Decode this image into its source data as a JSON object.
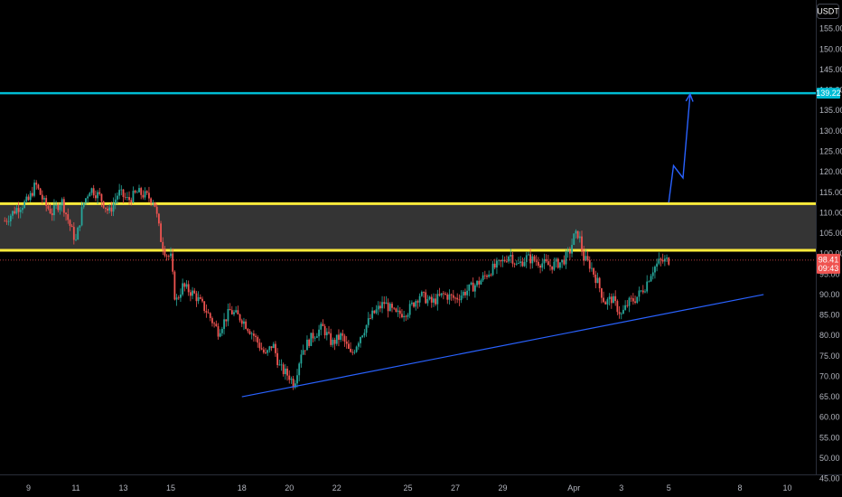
{
  "chart_data": {
    "type": "candlestick",
    "currency": "USDT",
    "x_axis": {
      "tick_labels": [
        "9",
        "11",
        "13",
        "15",
        "18",
        "20",
        "22",
        "25",
        "27",
        "29",
        "Apr",
        "3",
        "5",
        "8",
        "10"
      ],
      "tick_days": [
        9,
        11,
        13,
        15,
        18,
        20,
        22,
        25,
        27,
        29,
        32,
        34,
        36,
        39,
        41
      ],
      "range_days": [
        7.8,
        42.2
      ]
    },
    "y_axis": {
      "tick_labels": [
        "155.00",
        "150.00",
        "145.00",
        "140.00",
        "135.00",
        "130.00",
        "125.00",
        "120.00",
        "115.00",
        "110.00",
        "105.00",
        "100.00",
        "95.00",
        "90.00",
        "85.00",
        "80.00",
        "75.00",
        "70.00",
        "65.00",
        "60.00",
        "55.00",
        "50.00",
        "45.00"
      ],
      "ylim": [
        40.5,
        162
      ]
    },
    "price_path": [
      [
        8.0,
        108
      ],
      [
        8.5,
        111
      ],
      [
        9.0,
        113
      ],
      [
        9.3,
        117
      ],
      [
        9.7,
        112
      ],
      [
        10.0,
        110
      ],
      [
        10.4,
        113
      ],
      [
        10.8,
        106
      ],
      [
        11.0,
        103
      ],
      [
        11.3,
        112
      ],
      [
        11.6,
        116
      ],
      [
        12.0,
        114
      ],
      [
        12.4,
        110
      ],
      [
        12.8,
        115
      ],
      [
        13.2,
        113
      ],
      [
        13.6,
        115
      ],
      [
        14.0,
        114
      ],
      [
        14.3,
        113
      ],
      [
        14.6,
        103
      ],
      [
        14.8,
        100
      ],
      [
        15.0,
        99
      ],
      [
        15.2,
        88
      ],
      [
        15.5,
        92
      ],
      [
        16.0,
        90
      ],
      [
        16.5,
        86
      ],
      [
        17.0,
        81
      ],
      [
        17.5,
        86
      ],
      [
        18.0,
        84
      ],
      [
        18.5,
        80
      ],
      [
        19.0,
        75
      ],
      [
        19.3,
        78
      ],
      [
        19.6,
        72
      ],
      [
        20.0,
        70
      ],
      [
        20.2,
        68
      ],
      [
        20.5,
        76
      ],
      [
        21.0,
        80
      ],
      [
        21.4,
        82
      ],
      [
        21.8,
        78
      ],
      [
        22.2,
        80
      ],
      [
        22.6,
        75
      ],
      [
        23.0,
        80
      ],
      [
        23.5,
        85
      ],
      [
        24.0,
        88
      ],
      [
        24.5,
        85
      ],
      [
        25.0,
        86
      ],
      [
        25.5,
        90
      ],
      [
        26.0,
        88
      ],
      [
        26.5,
        90
      ],
      [
        27.0,
        89
      ],
      [
        27.5,
        91
      ],
      [
        28.0,
        93
      ],
      [
        28.5,
        96
      ],
      [
        29.0,
        98
      ],
      [
        29.3,
        100
      ],
      [
        29.6,
        97
      ],
      [
        30.0,
        99
      ],
      [
        30.5,
        98
      ],
      [
        31.0,
        97
      ],
      [
        31.5,
        98
      ],
      [
        31.8,
        100
      ],
      [
        32.0,
        104
      ],
      [
        32.2,
        105
      ],
      [
        32.4,
        99
      ],
      [
        32.7,
        97
      ],
      [
        33.0,
        93
      ],
      [
        33.3,
        88
      ],
      [
        33.6,
        89
      ],
      [
        34.0,
        85
      ],
      [
        34.3,
        88
      ],
      [
        34.6,
        89
      ],
      [
        35.0,
        92
      ],
      [
        35.3,
        96
      ],
      [
        35.6,
        98
      ],
      [
        36.0,
        98.41
      ]
    ],
    "last_price": "98.41",
    "countdown": "09:43",
    "target_label": "139.22",
    "annotations": {
      "cyan_line_price": 139.22,
      "yellow_zone": [
        100.8,
        112.2
      ],
      "support_line": [
        [
          18.0,
          65.0
        ],
        [
          40.0,
          90.0
        ]
      ],
      "projection_path": [
        [
          36.0,
          112.5
        ],
        [
          36.2,
          121.5
        ],
        [
          36.6,
          118.5
        ],
        [
          36.9,
          139.0
        ]
      ]
    },
    "colors": {
      "up": "#26a69a",
      "down": "#ef5350",
      "cyan": "#00bcd4",
      "yellow": "#ffeb3b",
      "zone_fill": "#3a3a3a",
      "support": "#2962ff",
      "projection": "#2962ff",
      "price_badge": "#ef5350",
      "target_badge": "#00bcd4"
    }
  }
}
